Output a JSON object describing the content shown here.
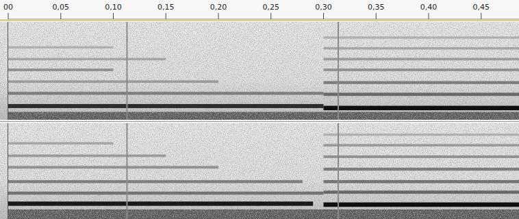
{
  "chart_data": {
    "type": "spectrogram",
    "xlim": [
      0,
      0.486
    ],
    "xticks": [
      {
        "value": 0,
        "label": "00"
      },
      {
        "value": 0.05,
        "label": "0,05"
      },
      {
        "value": 0.1,
        "label": "0,10"
      },
      {
        "value": 0.15,
        "label": "0,15"
      },
      {
        "value": 0.2,
        "label": "0,20"
      },
      {
        "value": 0.25,
        "label": "0,25"
      },
      {
        "value": 0.3,
        "label": "0,30"
      },
      {
        "value": 0.35,
        "label": "0,35"
      },
      {
        "value": 0.4,
        "label": "0,40"
      },
      {
        "value": 0.45,
        "label": "0,45"
      }
    ],
    "ylim": [
      0,
      1
    ],
    "tick_labels": "x",
    "transients": [
      0.113,
      0.314
    ],
    "channels": [
      {
        "noise_floor": 0.08,
        "bands": [
          {
            "x": [
              0,
              0.3
            ],
            "y": 0.14,
            "intensity": 0.85
          },
          {
            "x": [
              0.3,
              0.486
            ],
            "y": 0.12,
            "intensity": 1.0
          },
          {
            "x": [
              0,
              0.3
            ],
            "y": 0.27,
            "intensity": 0.45
          },
          {
            "x": [
              0.3,
              0.486
            ],
            "y": 0.26,
            "intensity": 0.55
          },
          {
            "x": [
              0,
              0.2
            ],
            "y": 0.39,
            "intensity": 0.3
          },
          {
            "x": [
              0.3,
              0.486
            ],
            "y": 0.38,
            "intensity": 0.45
          },
          {
            "x": [
              0,
              0.1
            ],
            "y": 0.51,
            "intensity": 0.35
          },
          {
            "x": [
              0.3,
              0.486
            ],
            "y": 0.51,
            "intensity": 0.35
          },
          {
            "x": [
              0,
              0.15
            ],
            "y": 0.62,
            "intensity": 0.25
          },
          {
            "x": [
              0.3,
              0.486
            ],
            "y": 0.62,
            "intensity": 0.3
          },
          {
            "x": [
              0,
              0.1
            ],
            "y": 0.74,
            "intensity": 0.2
          },
          {
            "x": [
              0.3,
              0.486
            ],
            "y": 0.73,
            "intensity": 0.25
          },
          {
            "x": [
              0.3,
              0.486
            ],
            "y": 0.84,
            "intensity": 0.2
          }
        ]
      },
      {
        "noise_floor": 0.1,
        "bands": [
          {
            "x": [
              0,
              0.29
            ],
            "y": 0.16,
            "intensity": 0.95
          },
          {
            "x": [
              0.3,
              0.486
            ],
            "y": 0.15,
            "intensity": 1.0
          },
          {
            "x": [
              0,
              0.3
            ],
            "y": 0.27,
            "intensity": 0.5
          },
          {
            "x": [
              0.3,
              0.486
            ],
            "y": 0.28,
            "intensity": 0.55
          },
          {
            "x": [
              0,
              0.28
            ],
            "y": 0.39,
            "intensity": 0.45
          },
          {
            "x": [
              0.3,
              0.486
            ],
            "y": 0.39,
            "intensity": 0.5
          },
          {
            "x": [
              0,
              0.2
            ],
            "y": 0.54,
            "intensity": 0.35
          },
          {
            "x": [
              0.3,
              0.486
            ],
            "y": 0.52,
            "intensity": 0.45
          },
          {
            "x": [
              0,
              0.15
            ],
            "y": 0.66,
            "intensity": 0.3
          },
          {
            "x": [
              0.3,
              0.486
            ],
            "y": 0.65,
            "intensity": 0.35
          },
          {
            "x": [
              0,
              0.1
            ],
            "y": 0.79,
            "intensity": 0.25
          },
          {
            "x": [
              0.3,
              0.486
            ],
            "y": 0.77,
            "intensity": 0.3
          },
          {
            "x": [
              0.3,
              0.486
            ],
            "y": 0.88,
            "intensity": 0.2
          }
        ]
      }
    ]
  }
}
